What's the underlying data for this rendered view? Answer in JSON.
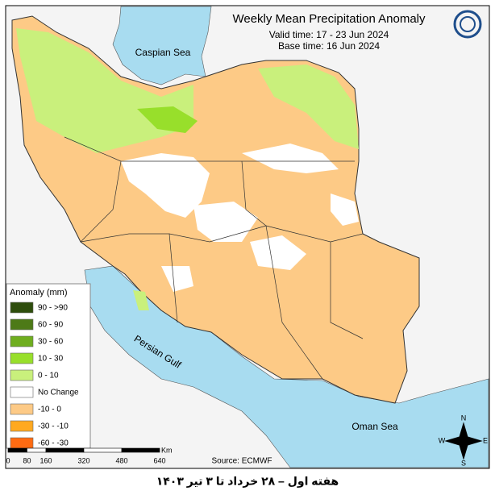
{
  "header": {
    "title": "Weekly Mean Precipitation Anomaly",
    "valid_time": "Valid time: 17 - 23 Jun 2024",
    "base_time": "Base time: 16 Jun 2024"
  },
  "labels": {
    "caspian": "Caspian Sea",
    "persian_gulf": "Persian Gulf",
    "oman_sea": "Oman Sea"
  },
  "legend": {
    "title": "Anomaly (mm)",
    "items": [
      {
        "label": "90 - >90",
        "color": "#2e4d0c"
      },
      {
        "label": "60 - 90",
        "color": "#4d7a17"
      },
      {
        "label": "30 - 60",
        "color": "#6fae1f"
      },
      {
        "label": "10 - 30",
        "color": "#98df2b"
      },
      {
        "label": "0 - 10",
        "color": "#c9f07c"
      },
      {
        "label": "No Change",
        "color": "#ffffff"
      },
      {
        "label": "-10 - 0",
        "color": "#fdca86"
      },
      {
        "label": "-30 - -10",
        "color": "#ffa920"
      },
      {
        "label": "-60 - -30",
        "color": "#ff6b12"
      }
    ]
  },
  "scale": {
    "ticks": [
      0,
      80,
      160,
      320,
      480,
      640
    ],
    "unit": "Km"
  },
  "source": "Source: ECMWF",
  "compass": {
    "n": "N",
    "e": "E",
    "s": "S",
    "w": "W"
  },
  "caption": "هفته اول – ۲۸ خرداد تا ۳ تیر ۱۴۰۳"
}
